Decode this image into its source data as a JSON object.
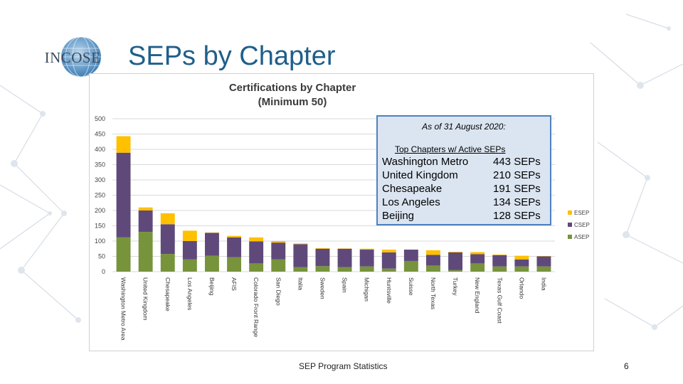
{
  "slide": {
    "title": "SEPs by Chapter",
    "footer": "SEP Program Statistics",
    "page_number": "6",
    "logo_text": "INCOSE"
  },
  "colors": {
    "title": "#1f5f8b",
    "esep": "#ffc000",
    "csep": "#5f497a",
    "asep": "#77933c",
    "info_bg": "#dbe5f1",
    "info_border": "#4f81bd"
  },
  "info_box": {
    "heading": "As of 31 August 2020:",
    "subheading": "Top Chapters w/ Active SEPs",
    "rows": [
      {
        "chapter": "Washington Metro",
        "count": "443 SEPs"
      },
      {
        "chapter": "United Kingdom",
        "count": "210 SEPs"
      },
      {
        "chapter": "Chesapeake",
        "count": "191 SEPs"
      },
      {
        "chapter": "Los Angeles",
        "count": "134 SEPs"
      },
      {
        "chapter": "Beijing",
        "count": "128 SEPs"
      }
    ]
  },
  "chart_data": {
    "type": "bar",
    "stacked": true,
    "title": "Certifications by Chapter",
    "subtitle": "(Minimum 50)",
    "xlabel": "",
    "ylabel": "",
    "ylim": [
      0,
      500
    ],
    "yticks": [
      0,
      50,
      100,
      150,
      200,
      250,
      300,
      350,
      400,
      450,
      500
    ],
    "grid": true,
    "legend_position": "right",
    "categories": [
      "Washington Metro Area",
      "United Kingdom",
      "Chesapeake",
      "Los Angeles",
      "Beijing",
      "AFIS",
      "Colorado Front Range",
      "San Diego",
      "Italia",
      "Sweden",
      "Spain",
      "Michigan",
      "Huntsville",
      "Suisse",
      "North Texas",
      "Turkey",
      "New England",
      "Texas Gulf Coast",
      "Orlando",
      "India"
    ],
    "series": [
      {
        "name": "ASEP",
        "color": "#77933c",
        "values": [
          112,
          130,
          58,
          40,
          52,
          47,
          27,
          40,
          15,
          18,
          15,
          17,
          10,
          35,
          20,
          5,
          27,
          17,
          17,
          17
        ]
      },
      {
        "name": "CSEP",
        "color": "#5f497a",
        "values": [
          277,
          70,
          97,
          60,
          75,
          65,
          72,
          55,
          75,
          57,
          60,
          55,
          53,
          37,
          35,
          58,
          30,
          37,
          23,
          33
        ]
      },
      {
        "name": "ESEP",
        "color": "#ffc000",
        "values": [
          54,
          10,
          36,
          34,
          1,
          5,
          13,
          5,
          2,
          2,
          1,
          3,
          9,
          0,
          15,
          2,
          7,
          2,
          12,
          1
        ]
      }
    ],
    "legend": [
      "ESEP",
      "CSEP",
      "ASEP"
    ]
  }
}
